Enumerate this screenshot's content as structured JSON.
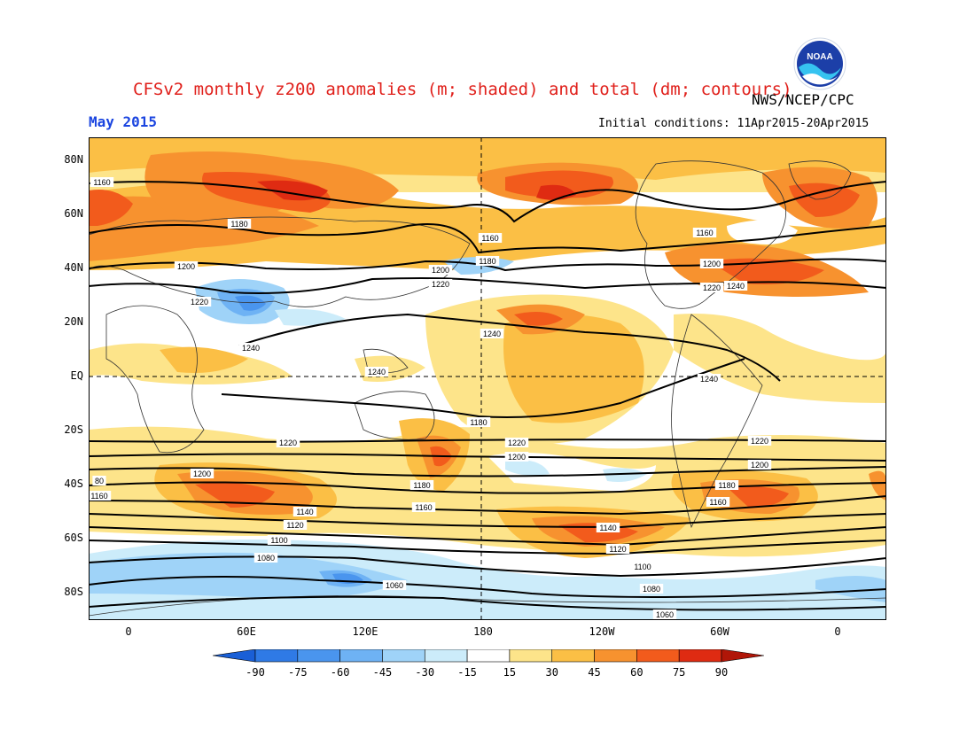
{
  "header": {
    "title": "CFSv2 monthly z200 anomalies (m; shaded) and total (dm; contours)",
    "agency": "NWS/NCEP/CPC",
    "month": "May 2015",
    "initial_conditions": "Initial conditions: 11Apr2015-20Apr2015",
    "logo_text": "NOAA"
  },
  "axes": {
    "lat_labels": [
      "80N",
      "60N",
      "40N",
      "20N",
      "EQ",
      "20S",
      "40S",
      "60S",
      "80S"
    ],
    "lon_labels": [
      "0",
      "60E",
      "120E",
      "180",
      "120W",
      "60W",
      "0"
    ]
  },
  "contour_labels": [
    "1160",
    "1180",
    "1200",
    "1220",
    "1240",
    "1240",
    "1160",
    "1200",
    "1180",
    "1220",
    "1240",
    "1180",
    "1160",
    "1200",
    "1220",
    "1240",
    "1240",
    "1220",
    "1200",
    "80",
    "1160",
    "1200",
    "1220",
    "1200",
    "1180",
    "1160",
    "1140",
    "1120",
    "1100",
    "1080",
    "1060",
    "1220",
    "1200",
    "1180",
    "1160",
    "1140",
    "1120",
    "1100",
    "1080",
    "1060"
  ],
  "colorbar": {
    "labels": [
      "-90",
      "-75",
      "-60",
      "-45",
      "-30",
      "-15",
      "15",
      "30",
      "45",
      "60",
      "75",
      "90"
    ],
    "colors": [
      "#1a5fd6",
      "#2f7ae6",
      "#4a95ee",
      "#6eb2f4",
      "#9fd3f8",
      "#ccecfa",
      "#ffffff",
      "#fde48a",
      "#fbbf45",
      "#f7922f",
      "#f25b1c",
      "#df2b12",
      "#b01608"
    ]
  },
  "colors": {
    "title": "#e0201b",
    "month": "#1b45e0"
  }
}
